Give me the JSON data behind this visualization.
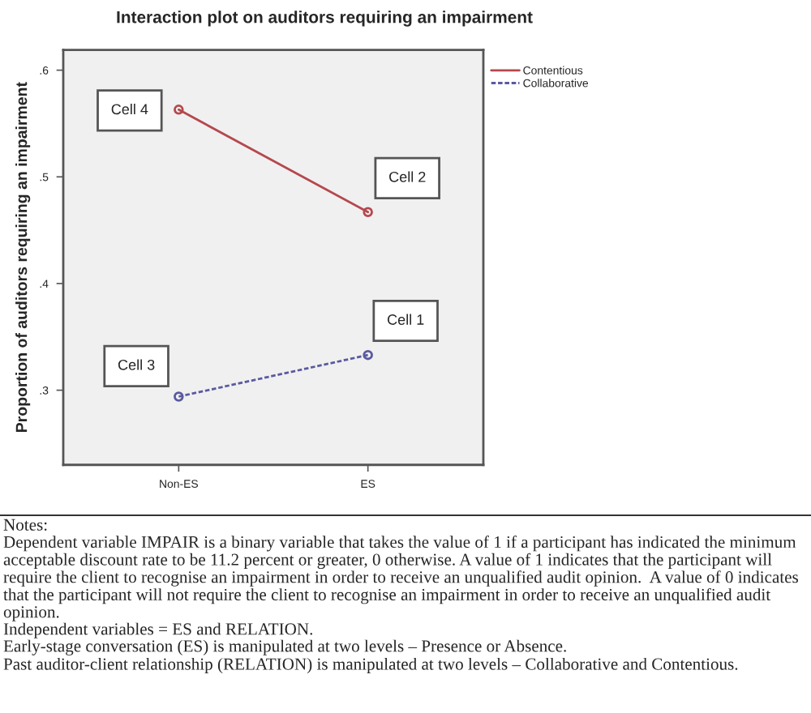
{
  "chart_data": {
    "type": "line",
    "title": "Interaction plot on auditors requiring an impairment",
    "ylabel": "Proportion of auditors requiring an impairment",
    "categories": [
      "Non-ES",
      "ES"
    ],
    "series": [
      {
        "name": "Contentious",
        "color": "#b5484e",
        "values": [
          0.563,
          0.467
        ],
        "line_style": "solid"
      },
      {
        "name": "Collaborative",
        "color": "#5a5aa0",
        "values": [
          0.294,
          0.333
        ],
        "line_style": "dashed"
      }
    ],
    "ylim": [
      0.23,
      0.619
    ],
    "yticks": [
      {
        "value": 0.3,
        "label": ".3"
      },
      {
        "value": 0.4,
        "label": ".4"
      },
      {
        "value": 0.5,
        "label": ".5"
      },
      {
        "value": 0.6,
        "label": ".6"
      }
    ],
    "marker": "circle",
    "legend": "top right",
    "grid": false,
    "annotations": [
      "Cell 4",
      "Cell 2",
      "Cell 1",
      "Cell 3",
      "Notes:",
      "Dependent variable IMPAIR is a binary variable that takes the value of 1 if a participant has indicated the minimum acceptable discount rate to be 11.2 percent or greater, 0 otherwise. A value of 1 indicates that the participant will require the client to recognise an impairment in order to receive an unqualified audit opinion.  A value of 0 indicates that the participant will not require the client to recognise an impairment in order to receive an unqualified audit opinion.",
      "Independent variables = ES and RELATION.",
      "Early-stage conversation (ES) is manipulated at two levels – Presence or Absence.",
      "Past auditor-client relationship (RELATION) is manipulated at two levels – Collaborative and Contentious."
    ]
  }
}
